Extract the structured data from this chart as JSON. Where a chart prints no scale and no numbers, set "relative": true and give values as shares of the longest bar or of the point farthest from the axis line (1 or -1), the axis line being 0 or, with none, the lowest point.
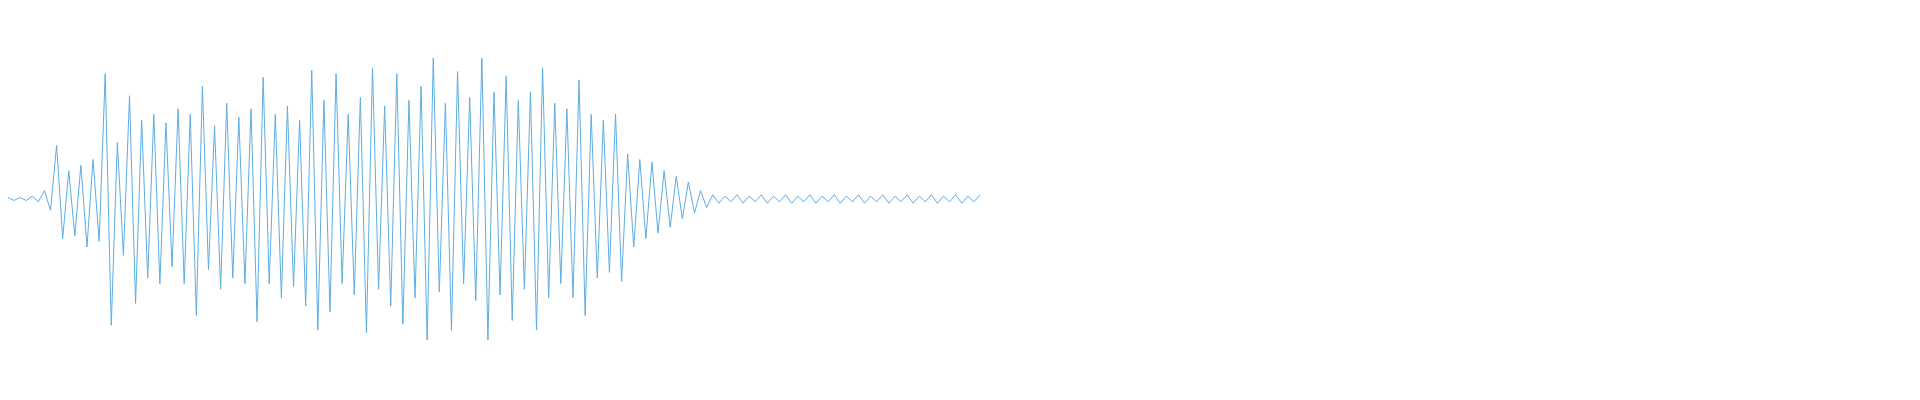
{
  "chart_data": {
    "type": "line",
    "relative": true,
    "color": "#5dade2",
    "categories": [
      null,
      null,
      null,
      null,
      null,
      null,
      null,
      null,
      null,
      null,
      null,
      null,
      null,
      null,
      null,
      null,
      null,
      null,
      null,
      null,
      null,
      null,
      null,
      null,
      null,
      null,
      null,
      null,
      null,
      null,
      null,
      null,
      null,
      null,
      null,
      null,
      null,
      null,
      null,
      null,
      null,
      null,
      null,
      null,
      null,
      null,
      null,
      null,
      null,
      null,
      null,
      null,
      null,
      null,
      null,
      null,
      null,
      null,
      null,
      null,
      null,
      null,
      null,
      null,
      null,
      null,
      null,
      null,
      null,
      null,
      null,
      null,
      null,
      null,
      null,
      null,
      null,
      null,
      null,
      null,
      null,
      null,
      null,
      null,
      null,
      null,
      null,
      null,
      null,
      null,
      null,
      null,
      null,
      null,
      null,
      null,
      null,
      null,
      null,
      null,
      null,
      null,
      null,
      null,
      null,
      null,
      null,
      null,
      null,
      null,
      null,
      null,
      null,
      null,
      null,
      null,
      null,
      null,
      null,
      null,
      null,
      null,
      null,
      null,
      null,
      null,
      null,
      null,
      null,
      null,
      null,
      null,
      null,
      null,
      null,
      null,
      null,
      null,
      null,
      null,
      null,
      null,
      null,
      null,
      null,
      null,
      null,
      null,
      null,
      null,
      null,
      null,
      null,
      null,
      null,
      null,
      null,
      null,
      null,
      null,
      null
    ],
    "values": [
      0.505,
      0.495,
      0.505,
      0.495,
      0.51,
      0.49,
      0.53,
      0.46,
      0.69,
      0.36,
      0.6,
      0.37,
      0.62,
      0.33,
      0.64,
      0.35,
      0.944,
      0.052,
      0.7,
      0.3,
      0.866,
      0.13,
      0.78,
      0.22,
      0.8,
      0.2,
      0.77,
      0.26,
      0.82,
      0.2,
      0.8,
      0.087,
      0.9,
      0.25,
      0.76,
      0.18,
      0.84,
      0.22,
      0.79,
      0.2,
      0.82,
      0.065,
      0.931,
      0.2,
      0.8,
      0.15,
      0.83,
      0.19,
      0.78,
      0.12,
      0.957,
      0.035,
      0.85,
      0.1,
      0.944,
      0.2,
      0.8,
      0.16,
      0.86,
      0.026,
      0.965,
      0.18,
      0.83,
      0.12,
      0.944,
      0.056,
      0.85,
      0.15,
      0.9,
      0,
      1,
      0.17,
      0.84,
      0.035,
      0.952,
      0.2,
      0.86,
      0.14,
      1,
      0,
      0.88,
      0.16,
      0.935,
      0.069,
      0.85,
      0.18,
      0.88,
      0.035,
      0.965,
      0.15,
      0.84,
      0.2,
      0.82,
      0.15,
      0.922,
      0.087,
      0.8,
      0.22,
      0.78,
      0.24,
      0.801,
      0.208,
      0.66,
      0.33,
      0.64,
      0.36,
      0.63,
      0.38,
      0.6,
      0.4,
      0.58,
      0.43,
      0.56,
      0.45,
      0.53,
      0.47,
      0.515,
      0.485,
      0.51,
      0.49,
      0.515,
      0.485,
      0.51,
      0.49,
      0.515,
      0.485,
      0.51,
      0.49,
      0.515,
      0.485,
      0.51,
      0.49,
      0.515,
      0.485,
      0.51,
      0.49,
      0.515,
      0.485,
      0.51,
      0.49,
      0.515,
      0.485,
      0.51,
      0.49,
      0.515,
      0.485,
      0.51,
      0.49,
      0.515,
      0.485,
      0.51,
      0.49,
      0.515,
      0.485,
      0.51,
      0.49,
      0.515,
      0.485,
      0.51,
      0.49,
      0.515
    ]
  }
}
